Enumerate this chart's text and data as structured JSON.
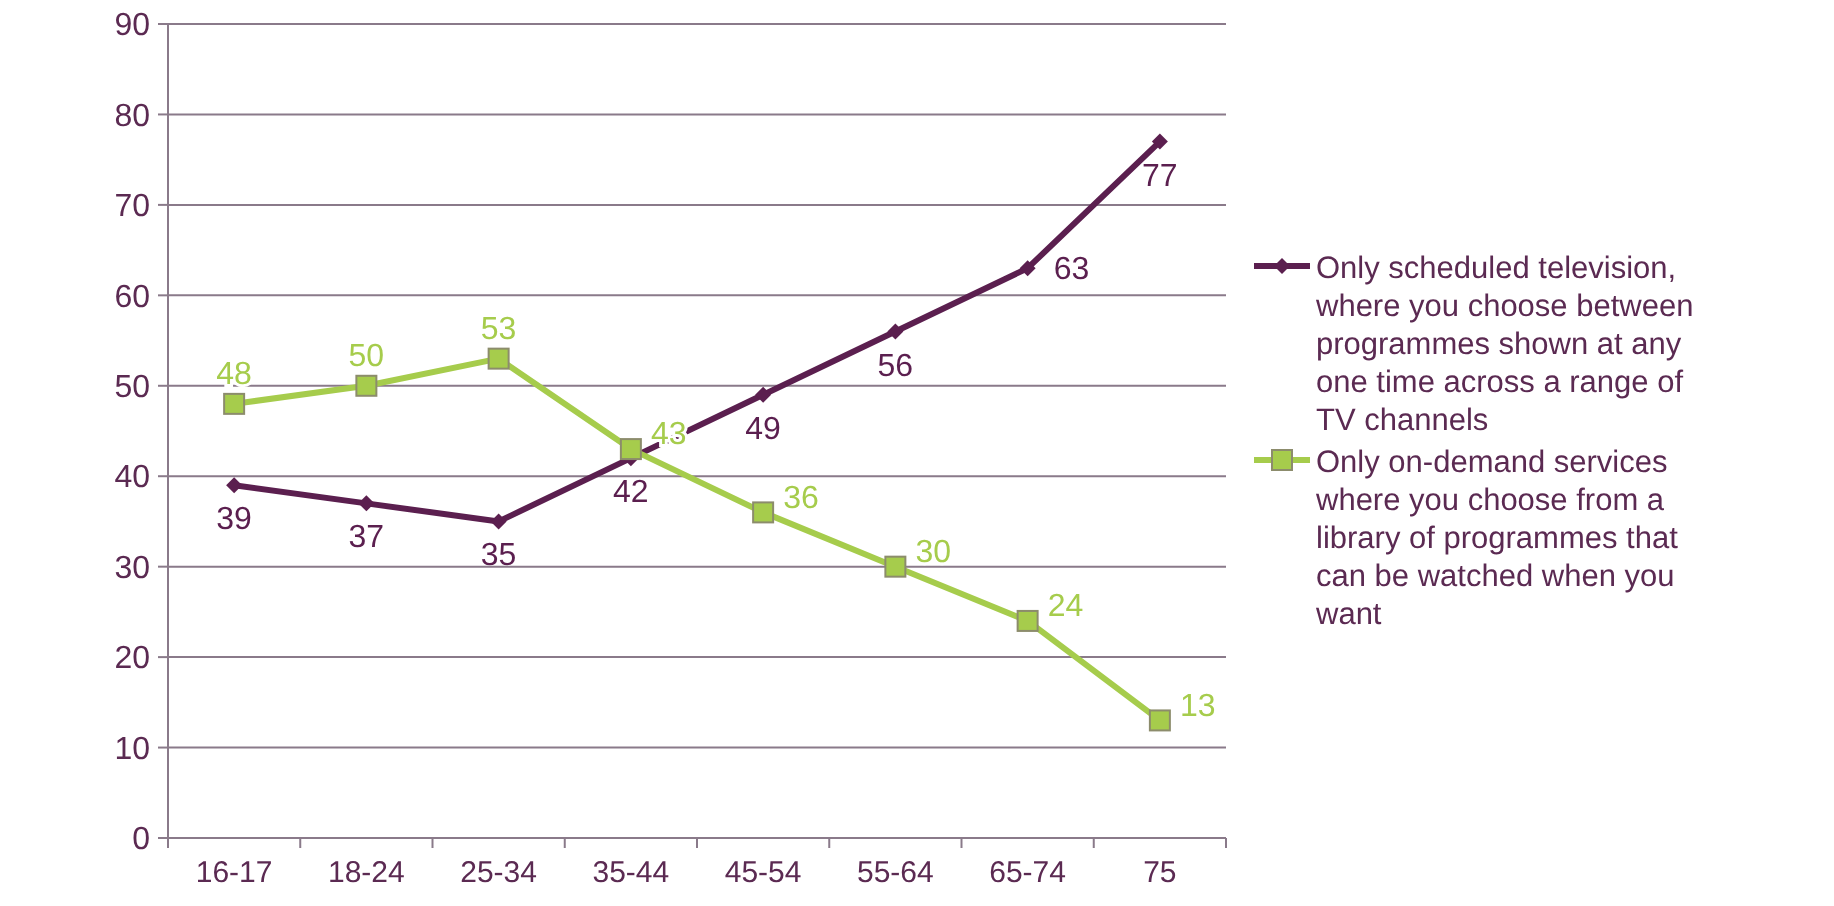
{
  "chart_data": {
    "type": "line",
    "categories": [
      "16-17",
      "18-24",
      "25-34",
      "35-44",
      "45-54",
      "55-64",
      "65-74",
      "75"
    ],
    "series": [
      {
        "name": "Only scheduled television, where you choose between programmes shown at any one time across a range of TV channels",
        "color": "#5b1f4f",
        "marker": "diamond",
        "values": [
          39,
          37,
          35,
          42,
          49,
          56,
          63,
          77
        ]
      },
      {
        "name": "Only on-demand services where you choose from a library of programmes that can be watched when you want",
        "color": "#a6cc4c",
        "marker": "square",
        "values": [
          48,
          50,
          53,
          43,
          36,
          30,
          24,
          13
        ]
      }
    ],
    "ylim": [
      0,
      90
    ],
    "yticks": [
      0,
      10,
      20,
      30,
      40,
      50,
      60,
      70,
      80,
      90
    ],
    "grid": "y",
    "legend": "right",
    "data_labels": true
  }
}
